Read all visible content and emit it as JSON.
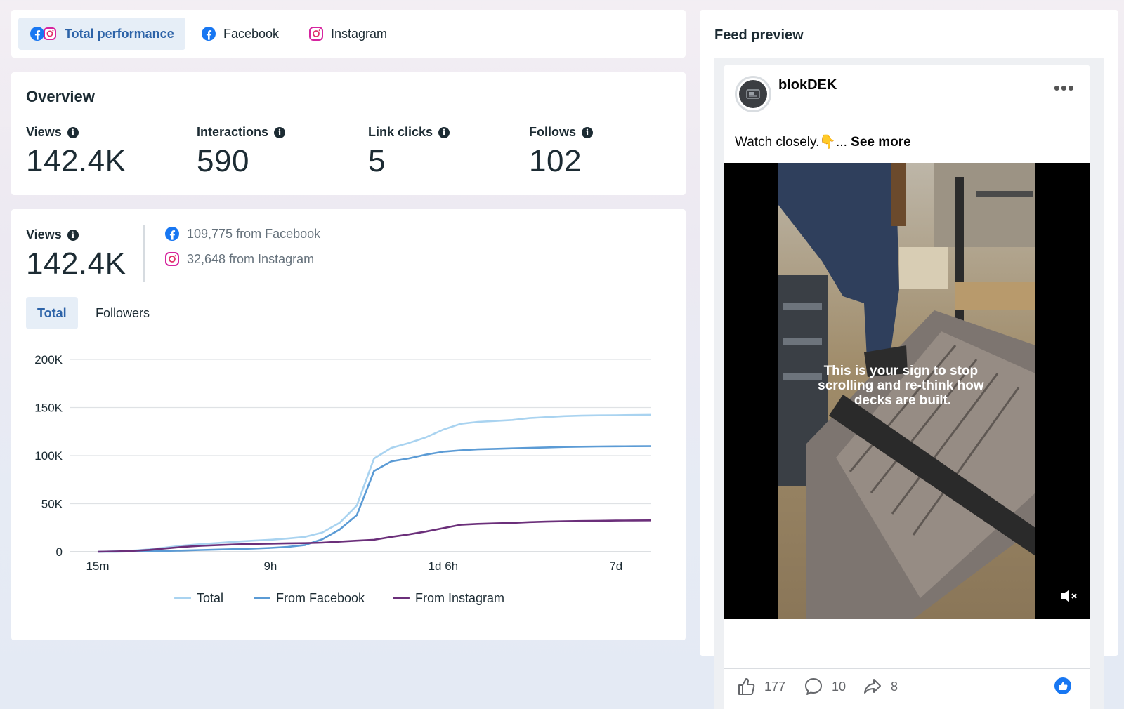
{
  "platform_tabs": [
    {
      "label": "Total performance",
      "icon": "facebook-instagram-icon",
      "active": true
    },
    {
      "label": "Facebook",
      "icon": "facebook-icon",
      "active": false
    },
    {
      "label": "Instagram",
      "icon": "instagram-icon",
      "active": false
    }
  ],
  "overview": {
    "title": "Overview",
    "metrics": [
      {
        "label": "Views",
        "value": "142.4K"
      },
      {
        "label": "Interactions",
        "value": "590"
      },
      {
        "label": "Link clicks",
        "value": "5"
      },
      {
        "label": "Follows",
        "value": "102"
      }
    ]
  },
  "views_card": {
    "label": "Views",
    "value": "142.4K",
    "sources": [
      {
        "text": "109,775 from Facebook",
        "icon": "facebook-icon"
      },
      {
        "text": "32,648 from Instagram",
        "icon": "instagram-icon"
      }
    ],
    "tabs": [
      {
        "label": "Total",
        "active": true
      },
      {
        "label": "Followers",
        "active": false
      }
    ]
  },
  "chart_data": {
    "type": "line",
    "title": "",
    "xlabel": "",
    "ylabel": "",
    "ylim": [
      0,
      200000
    ],
    "y_ticks": [
      0,
      50000,
      100000,
      150000,
      200000
    ],
    "y_tick_labels": [
      "0",
      "50K",
      "100K",
      "150K",
      "200K"
    ],
    "x_tick_labels": [
      "15m",
      "9h",
      "1d 6h",
      "7d"
    ],
    "x_tick_index": [
      0,
      10,
      20,
      30
    ],
    "grid": true,
    "legend": "bottom",
    "series": [
      {
        "name": "Total",
        "color": "#a9d3f0",
        "values": [
          0,
          500,
          1200,
          2500,
          4500,
          6500,
          8000,
          9200,
          10500,
          11500,
          12500,
          13800,
          15500,
          20000,
          30000,
          48000,
          97000,
          108000,
          113000,
          119000,
          127000,
          133000,
          135000,
          136000,
          137000,
          139000,
          140000,
          141000,
          141500,
          141800,
          142000,
          142200,
          142400
        ]
      },
      {
        "name": "From Facebook",
        "color": "#5b9bd5",
        "values": [
          0,
          100,
          300,
          600,
          900,
          1300,
          1800,
          2300,
          2800,
          3300,
          4000,
          5000,
          7000,
          13000,
          23000,
          38000,
          84000,
          94000,
          97000,
          101000,
          104000,
          105500,
          106500,
          107000,
          107500,
          108000,
          108500,
          109000,
          109300,
          109500,
          109600,
          109700,
          109775
        ]
      },
      {
        "name": "From Instagram",
        "color": "#6b2f7a",
        "values": [
          0,
          400,
          900,
          2000,
          3600,
          5200,
          6200,
          7000,
          7700,
          8200,
          8500,
          8800,
          9000,
          9500,
          10500,
          11500,
          12500,
          15500,
          18000,
          21000,
          24500,
          28000,
          29000,
          29500,
          30000,
          30800,
          31300,
          31700,
          32000,
          32200,
          32400,
          32550,
          32648
        ]
      }
    ]
  },
  "feed": {
    "title": "Feed preview",
    "page_name": "blokDEK",
    "caption_text": "Watch closely.👇... ",
    "caption_more": "See more",
    "video_overlay": "This is your sign to stop scrolling and re-think how decks are built.",
    "reactions": [
      {
        "icon": "like-icon",
        "count": "177"
      },
      {
        "icon": "comment-icon",
        "count": "10"
      },
      {
        "icon": "share-icon",
        "count": "8"
      }
    ]
  }
}
